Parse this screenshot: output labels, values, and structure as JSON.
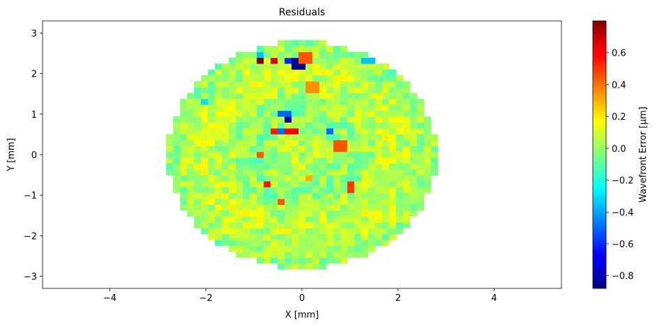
{
  "chart_data": {
    "type": "heatmap",
    "title": "Residuals",
    "xlabel": "X [mm]",
    "ylabel": "Y [mm]",
    "xlim": [
      -5.4,
      5.4
    ],
    "ylim": [
      -3.3,
      3.3
    ],
    "xticks": [
      -4,
      -2,
      0,
      2,
      4
    ],
    "xtick_labels": [
      "−4",
      "−2",
      "0",
      "2",
      "4"
    ],
    "yticks": [
      -3,
      -2,
      -1,
      0,
      1,
      2,
      3
    ],
    "ytick_labels": [
      "−3",
      "−2",
      "−1",
      "0",
      "1",
      "2",
      "3"
    ],
    "aperture_radius_mm": 2.8,
    "pixel_pitch_mm": 0.145,
    "colormap": "jet",
    "colorbar": {
      "label": "Wavefront Error [µm]",
      "vmin": -0.88,
      "vmax": 0.8,
      "ticks": [
        -0.8,
        -0.6,
        -0.4,
        -0.2,
        0.0,
        0.2,
        0.4,
        0.6
      ],
      "tick_labels": [
        "−0.8",
        "−0.6",
        "−0.4",
        "−0.2",
        "0.0",
        "0.2",
        "0.4",
        "0.6"
      ]
    },
    "background_value": 0.03,
    "features": [
      {
        "x": -0.9,
        "y": 2.3,
        "value": 0.8
      },
      {
        "x": -0.55,
        "y": 2.3,
        "value": 0.65
      },
      {
        "x": -0.2,
        "y": 2.3,
        "value": -0.6
      },
      {
        "x": -0.05,
        "y": 2.25,
        "value": -0.85
      },
      {
        "x": 0.1,
        "y": 2.4,
        "value": 0.45
      },
      {
        "x": -0.85,
        "y": 2.5,
        "value": -0.35
      },
      {
        "x": 1.4,
        "y": 2.3,
        "value": -0.35
      },
      {
        "x": 0.25,
        "y": 1.7,
        "value": 0.35
      },
      {
        "x": -0.35,
        "y": 1.0,
        "value": -0.5
      },
      {
        "x": -0.3,
        "y": 0.9,
        "value": -0.8
      },
      {
        "x": -0.55,
        "y": 0.6,
        "value": 0.55
      },
      {
        "x": -0.35,
        "y": 0.6,
        "value": -0.5
      },
      {
        "x": -0.2,
        "y": 0.6,
        "value": 0.6
      },
      {
        "x": 0.55,
        "y": 0.6,
        "value": -0.5
      },
      {
        "x": 0.8,
        "y": 0.25,
        "value": 0.45
      },
      {
        "x": -0.9,
        "y": 0.0,
        "value": 0.45
      },
      {
        "x": -0.75,
        "y": -0.7,
        "value": 0.55
      },
      {
        "x": 1.05,
        "y": -0.8,
        "value": 0.5
      },
      {
        "x": -0.45,
        "y": -1.15,
        "value": 0.45
      },
      {
        "x": 0.15,
        "y": -0.6,
        "value": 0.3
      },
      {
        "x": -2.0,
        "y": 1.3,
        "value": -0.3
      }
    ]
  }
}
